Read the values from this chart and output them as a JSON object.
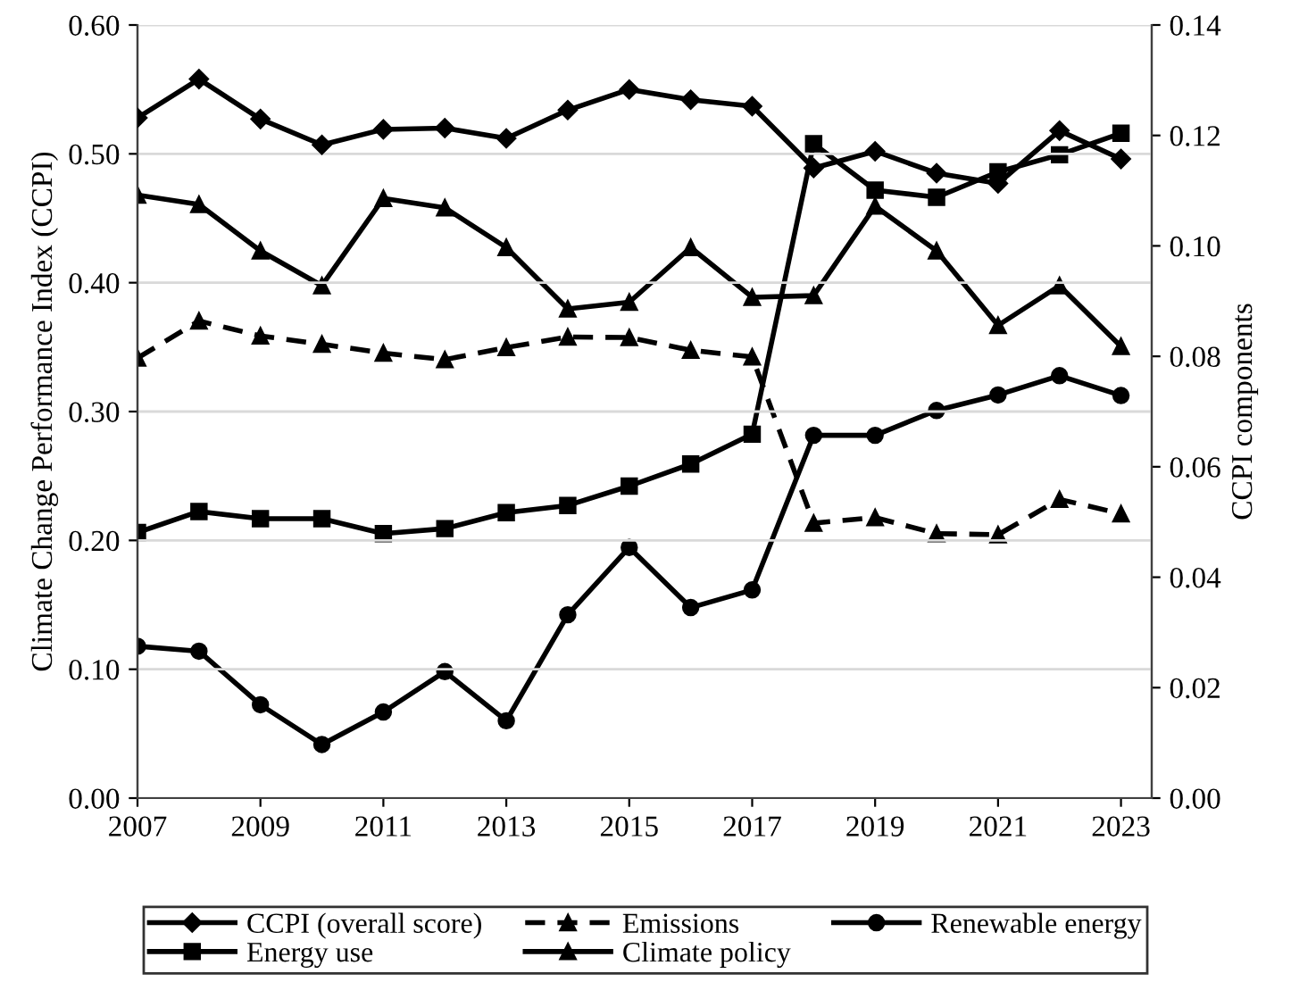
{
  "chart_data": {
    "type": "line",
    "ylabel": "Climate Change Performance Index (CCPI)",
    "y2label": "CCPI components",
    "x": [
      2007,
      2008,
      2009,
      2010,
      2011,
      2012,
      2013,
      2014,
      2015,
      2016,
      2017,
      2018,
      2019,
      2020,
      2021,
      2022,
      2023
    ],
    "xlim": [
      2007,
      2023.5
    ],
    "xticks": [
      2007,
      2009,
      2011,
      2013,
      2015,
      2017,
      2019,
      2021,
      2023
    ],
    "ylim": [
      0,
      0.6
    ],
    "yticks": [
      {
        "value": 0,
        "label": "0.00"
      },
      {
        "value": 0.1,
        "label": "0.10"
      },
      {
        "value": 0.2,
        "label": "0.20"
      },
      {
        "value": 0.3,
        "label": "0.30"
      },
      {
        "value": 0.4,
        "label": "0.40"
      },
      {
        "value": 0.5,
        "label": "0.50"
      },
      {
        "value": 0.6,
        "label": "0.60"
      }
    ],
    "y2lim": [
      0,
      0.14
    ],
    "y2ticks": [
      {
        "value": 0,
        "label": "0.00"
      },
      {
        "value": 0.02,
        "label": "0.02"
      },
      {
        "value": 0.04,
        "label": "0.04"
      },
      {
        "value": 0.06,
        "label": "0.06"
      },
      {
        "value": 0.08,
        "label": "0.08"
      },
      {
        "value": 0.1,
        "label": "0.10"
      },
      {
        "value": 0.12,
        "label": "0.12"
      },
      {
        "value": 0.14,
        "label": "0.14"
      }
    ],
    "grid": "y",
    "legend": "bottom",
    "series": [
      {
        "name": "CCPI (overall score)",
        "color": "#000000",
        "marker": "diamond",
        "line_style": "solid",
        "values": [
          0.528,
          0.558,
          0.527,
          0.507,
          0.519,
          0.52,
          0.512,
          0.534,
          0.55,
          0.542,
          0.537,
          0.489,
          0.502,
          0.485,
          0.477,
          0.518,
          0.496
        ]
      },
      {
        "name": "Emissions",
        "color": "#000000",
        "marker": "triangle",
        "line_style": "dashed",
        "axis": "y2",
        "values": [
          0.0797,
          0.0864,
          0.0837,
          0.0822,
          0.0806,
          0.0794,
          0.0816,
          0.0835,
          0.0834,
          0.0811,
          0.0799,
          0.0498,
          0.0508,
          0.0479,
          0.0477,
          0.0541,
          0.0515
        ]
      },
      {
        "name": "Renewable energy",
        "color": "#000000",
        "marker": "circle",
        "line_style": "solid",
        "axis": "y2",
        "values": [
          0.0275,
          0.0266,
          0.0169,
          0.0097,
          0.0156,
          0.0229,
          0.014,
          0.0332,
          0.0454,
          0.0345,
          0.0377,
          0.0657,
          0.0657,
          0.0702,
          0.073,
          0.0765,
          0.0729
        ]
      },
      {
        "name": "Energy use",
        "color": "#000000",
        "marker": "square",
        "line_style": "solid",
        "axis": "y2",
        "values": [
          0.0481,
          0.0519,
          0.0506,
          0.0506,
          0.0479,
          0.0488,
          0.0517,
          0.053,
          0.0565,
          0.0605,
          0.0659,
          0.1185,
          0.1101,
          0.1088,
          0.1134,
          0.1165,
          0.1204
        ]
      },
      {
        "name": "Climate policy",
        "color": "#000000",
        "marker": "triangle",
        "line_style": "solid",
        "axis": "y2",
        "values": [
          0.1092,
          0.1075,
          0.0991,
          0.0928,
          0.1086,
          0.1069,
          0.0997,
          0.0886,
          0.0898,
          0.0997,
          0.0907,
          0.091,
          0.1072,
          0.0991,
          0.0856,
          0.0928,
          0.0818
        ]
      }
    ]
  }
}
